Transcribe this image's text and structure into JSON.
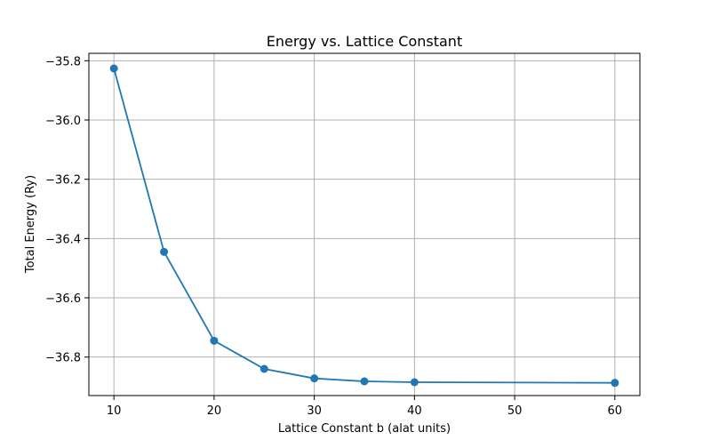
{
  "chart_data": {
    "type": "line",
    "title": "Energy vs. Lattice Constant",
    "xlabel": "Lattice Constant b (alat units)",
    "ylabel": "Total Energy (Ry)",
    "xlim": [
      7.5,
      62.5
    ],
    "ylim": [
      -36.93,
      -35.775
    ],
    "x_ticks": [
      10,
      20,
      30,
      40,
      50,
      60
    ],
    "x_tick_labels": [
      "10",
      "20",
      "30",
      "40",
      "50",
      "60"
    ],
    "y_ticks": [
      -35.8,
      -36.0,
      -36.2,
      -36.4,
      -36.6,
      -36.8
    ],
    "y_tick_labels": [
      "−35.8",
      "−36.0",
      "−36.2",
      "−36.4",
      "−36.6",
      "−36.8"
    ],
    "grid": true,
    "series": [
      {
        "color": "#1f77b4",
        "marker": "circle",
        "x": [
          10,
          15,
          20,
          25,
          30,
          35,
          40,
          60
        ],
        "y": [
          -35.826,
          -36.445,
          -36.745,
          -36.84,
          -36.872,
          -36.882,
          -36.885,
          -36.887
        ]
      }
    ]
  }
}
